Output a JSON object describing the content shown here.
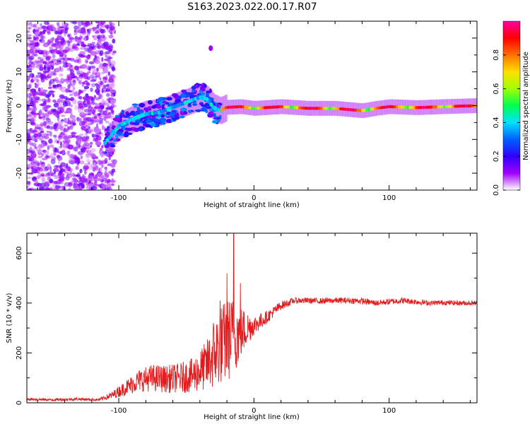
{
  "title": "S163.2023.022.00.17.R07",
  "chart_data": [
    {
      "type": "heatmap",
      "xlabel": "Height of straight line (km)",
      "ylabel": "Frequency (Hz)",
      "xlim": [
        -168,
        165
      ],
      "ylim": [
        -25,
        25
      ],
      "x_ticks": [
        -100,
        0,
        100
      ],
      "x_tick_labels": [
        "-100",
        "0",
        "100"
      ],
      "y_ticks": [
        -20,
        -10,
        0,
        10,
        20
      ],
      "y_tick_labels": [
        "-20",
        "-10",
        "0",
        "10",
        "20"
      ],
      "colorbar": {
        "label": "Normalized spectral amplitude",
        "range": [
          0,
          1
        ],
        "ticks": [
          0.0,
          0.2,
          0.4,
          0.6,
          0.8
        ],
        "tick_labels": [
          "0.0",
          "0.2",
          "0.4",
          "0.6",
          "0.8"
        ],
        "colors": [
          "#ffffff",
          "#a000ff",
          "#3000ff",
          "#0060ff",
          "#00e0ff",
          "#00ff50",
          "#a0ff00",
          "#ffe000",
          "#ff7000",
          "#ff0000",
          "#ff00a0"
        ]
      },
      "ridge": {
        "x": [
          -110,
          -100,
          -90,
          -80,
          -70,
          -60,
          -50,
          -40,
          -35,
          -30,
          -25,
          -20,
          -10,
          0,
          20,
          40,
          60,
          80,
          90,
          100,
          120,
          140,
          165
        ],
        "y": [
          -11,
          -6,
          -4,
          -2.5,
          -2,
          -0.5,
          1,
          2.5,
          2,
          -0.5,
          -1.5,
          -0.5,
          -0.3,
          -0.8,
          -0.3,
          -0.8,
          -0.8,
          -1.5,
          -0.8,
          -0.3,
          -0.6,
          -0.3,
          0
        ]
      }
    },
    {
      "type": "line",
      "xlabel": "Height of straight line (km)",
      "ylabel": "SNR (10 * v/v)",
      "xlim": [
        -168,
        165
      ],
      "ylim": [
        0,
        680
      ],
      "x_ticks": [
        -100,
        0,
        100
      ],
      "x_tick_labels": [
        "-100",
        "0",
        "100"
      ],
      "y_ticks": [
        0,
        200,
        400,
        600
      ],
      "y_tick_labels": [
        "0",
        "200",
        "400",
        "600"
      ],
      "series": [
        {
          "color": "#e41a1c",
          "x": [
            -168,
            -150,
            -130,
            -115,
            -105,
            -95,
            -85,
            -75,
            -65,
            -55,
            -45,
            -35,
            -30,
            -25,
            -20,
            -15,
            -10,
            -5,
            0,
            10,
            20,
            30,
            40,
            50,
            60,
            70,
            80,
            90,
            100,
            110,
            120,
            130,
            140,
            150,
            165
          ],
          "y": [
            15,
            12,
            15,
            12,
            30,
            60,
            90,
            100,
            95,
            100,
            110,
            150,
            190,
            230,
            250,
            270,
            280,
            300,
            310,
            345,
            390,
            410,
            410,
            408,
            410,
            410,
            408,
            400,
            405,
            410,
            405,
            400,
            402,
            400,
            400
          ],
          "noise": [
            5,
            5,
            6,
            5,
            15,
            30,
            45,
            55,
            55,
            60,
            70,
            100,
            140,
            160,
            170,
            160,
            110,
            70,
            40,
            25,
            18,
            12,
            12,
            12,
            12,
            12,
            12,
            12,
            12,
            12,
            12,
            10,
            10,
            10,
            10
          ],
          "peaks": [
            {
              "x": -15,
              "y": 680
            },
            {
              "x": -20,
              "y": 520
            },
            {
              "x": -25,
              "y": 410
            },
            {
              "x": -10,
              "y": 480
            },
            {
              "x": -30,
              "y": 320
            }
          ]
        }
      ]
    }
  ]
}
